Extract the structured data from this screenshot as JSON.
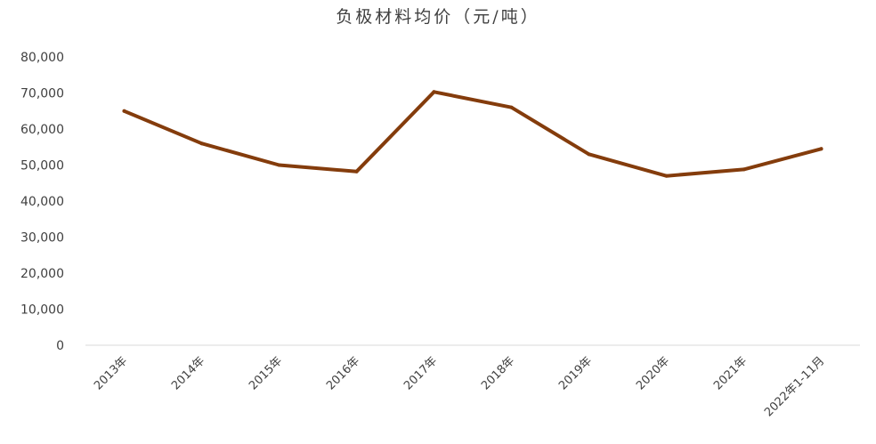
{
  "chart_data": {
    "type": "line",
    "title": "负极材料均价（元/吨）",
    "xlabel": "",
    "ylabel": "",
    "categories": [
      "2013年",
      "2014年",
      "2015年",
      "2016年",
      "2017年",
      "2018年",
      "2019年",
      "2020年",
      "2021年",
      "2022年1-11月"
    ],
    "series": [
      {
        "values": [
          65000,
          56000,
          50000,
          48200,
          70300,
          66000,
          53000,
          47000,
          48800,
          54500
        ],
        "color": "#843c0c"
      }
    ],
    "ylim": [
      0,
      80000
    ],
    "yticks": [
      0,
      10000,
      20000,
      30000,
      40000,
      50000,
      60000,
      70000,
      80000
    ],
    "ytick_labels": [
      "0",
      "10,000",
      "20,000",
      "30,000",
      "40,000",
      "50,000",
      "60,000",
      "70,000",
      "80,000"
    ],
    "grid": false,
    "legend": "none",
    "axis_color": "#d9d9d9",
    "text_color": "#404040"
  }
}
